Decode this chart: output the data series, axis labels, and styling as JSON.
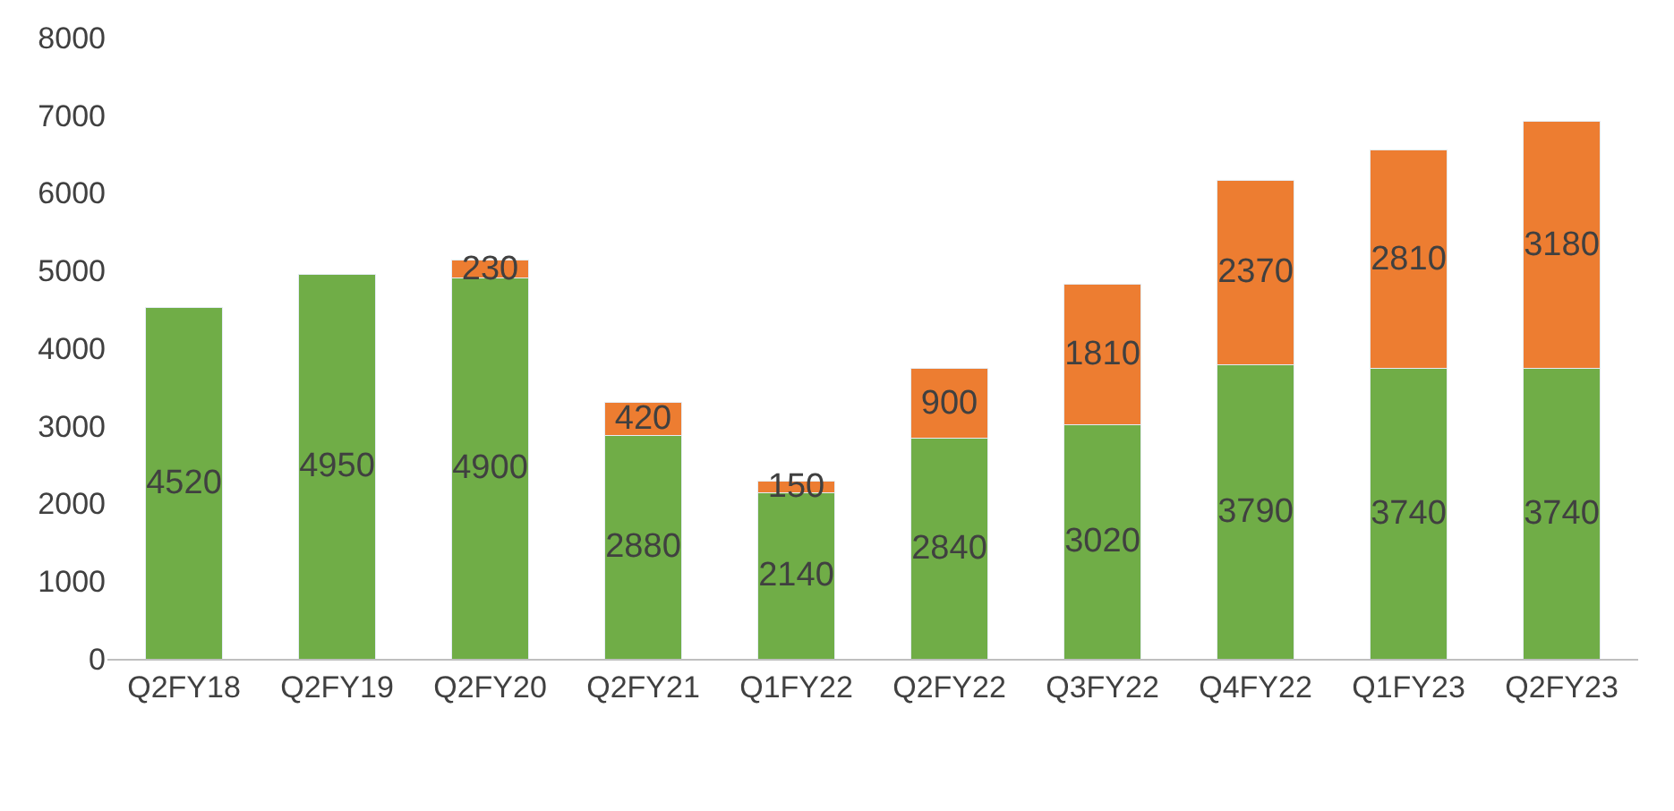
{
  "chart_data": {
    "type": "bar",
    "stacked": true,
    "data_labels": true,
    "legend": false,
    "grid": false,
    "categories": [
      "Q2FY18",
      "Q2FY19",
      "Q2FY20",
      "Q2FY21",
      "Q1FY22",
      "Q2FY22",
      "Q3FY22",
      "Q4FY22",
      "Q1FY23",
      "Q2FY23"
    ],
    "series": [
      {
        "color": "#70ad47",
        "values": [
          4520,
          4950,
          4900,
          2880,
          2140,
          2840,
          3020,
          3790,
          3740,
          3740
        ]
      },
      {
        "color": "#ed7d31",
        "values": [
          null,
          null,
          230,
          420,
          150,
          900,
          1810,
          2370,
          2810,
          3180
        ]
      }
    ],
    "ylim": [
      0,
      8000
    ],
    "yticks": [
      0,
      1000,
      2000,
      3000,
      4000,
      5000,
      6000,
      7000,
      8000
    ]
  }
}
